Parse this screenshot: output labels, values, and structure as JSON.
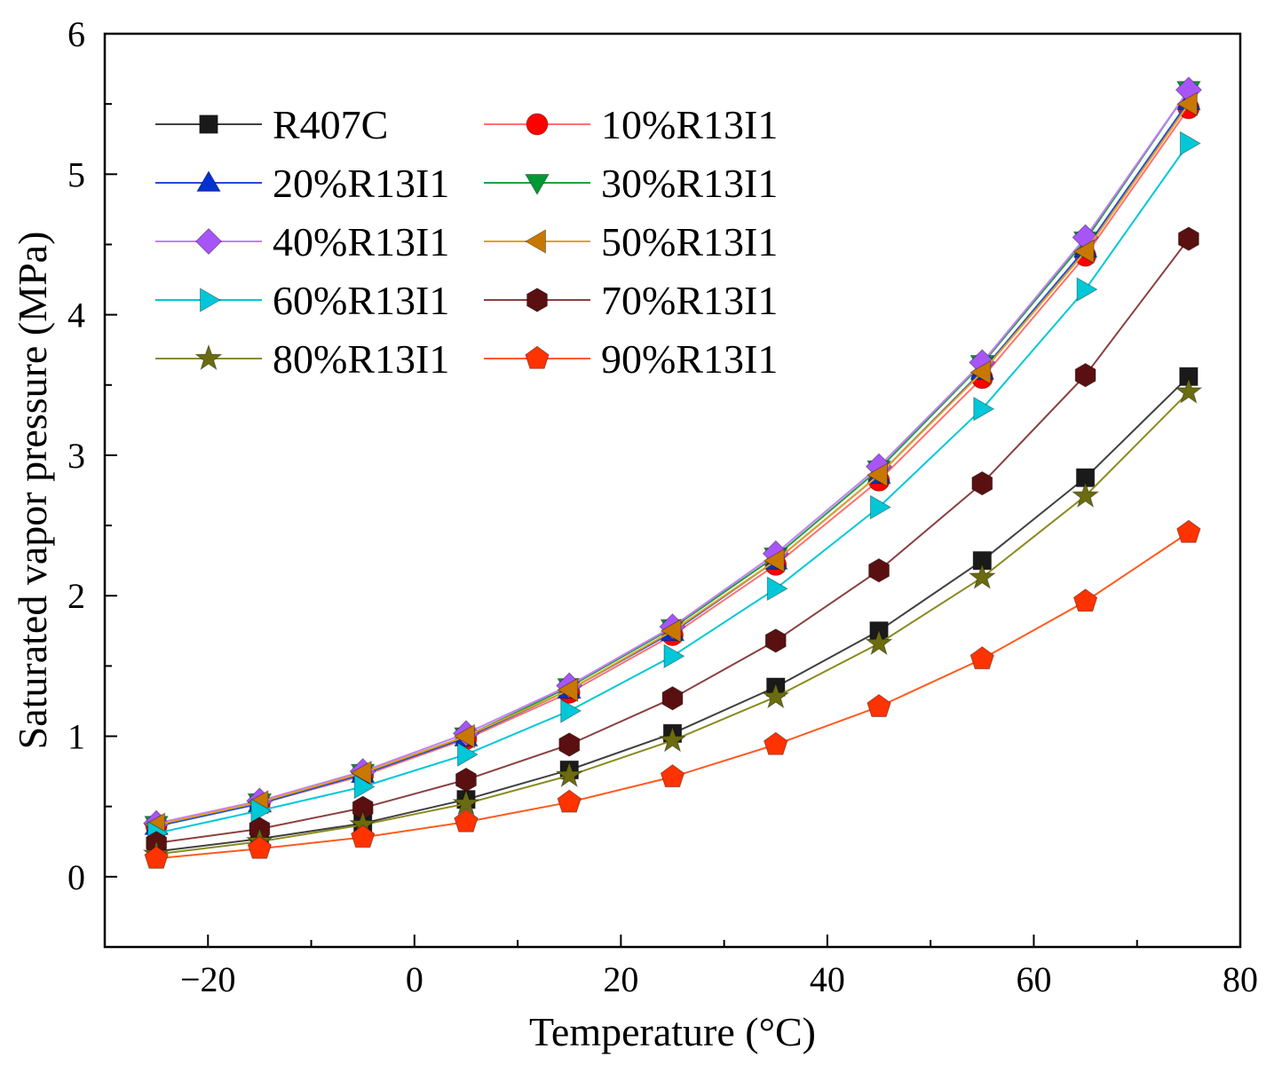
{
  "chart_data": {
    "type": "line",
    "title": "",
    "xlabel": "Temperature (°C)",
    "ylabel": "Saturated vapor pressure (MPa)",
    "xlim": [
      -30,
      80
    ],
    "ylim": [
      -0.5,
      6
    ],
    "x_ticks": [
      -20,
      0,
      20,
      40,
      60,
      80
    ],
    "y_ticks": [
      0,
      1,
      2,
      3,
      4,
      5,
      6
    ],
    "legend_position": "top-left",
    "x": [
      -25,
      -15,
      -5,
      5,
      15,
      25,
      35,
      45,
      55,
      65,
      75
    ],
    "series": [
      {
        "name": "R407C",
        "color": "#404040",
        "marker": "square",
        "markerColor": "#1a1a1a",
        "values": [
          0.18,
          0.27,
          0.38,
          0.55,
          0.76,
          1.02,
          1.35,
          1.75,
          2.25,
          2.84,
          3.56
        ]
      },
      {
        "name": "10%R13I1",
        "color": "#ff7070",
        "marker": "circle",
        "markerColor": "#ff0000",
        "values": [
          0.36,
          0.52,
          0.72,
          0.98,
          1.31,
          1.72,
          2.22,
          2.82,
          3.55,
          4.42,
          5.47
        ]
      },
      {
        "name": "20%R13I1",
        "color": "#1f4fd8",
        "marker": "triangle-up",
        "markerColor": "#0033cc",
        "values": [
          0.36,
          0.52,
          0.73,
          0.99,
          1.33,
          1.74,
          2.25,
          2.86,
          3.6,
          4.47,
          5.52
        ]
      },
      {
        "name": "30%R13I1",
        "color": "#20a040",
        "marker": "triangle-down",
        "markerColor": "#009933",
        "values": [
          0.37,
          0.53,
          0.74,
          1.0,
          1.35,
          1.77,
          2.28,
          2.9,
          3.65,
          4.53,
          5.6
        ]
      },
      {
        "name": "40%R13I1",
        "color": "#c77dff",
        "marker": "diamond",
        "markerColor": "#a855f7",
        "values": [
          0.38,
          0.54,
          0.75,
          1.02,
          1.36,
          1.78,
          2.3,
          2.92,
          3.66,
          4.55,
          5.6
        ]
      },
      {
        "name": "50%R13I1",
        "color": "#e0a020",
        "marker": "triangle-left",
        "markerColor": "#c87800",
        "values": [
          0.37,
          0.53,
          0.74,
          1.0,
          1.33,
          1.75,
          2.25,
          2.86,
          3.59,
          4.45,
          5.5
        ]
      },
      {
        "name": "60%R13I1",
        "color": "#00c8d8",
        "marker": "triangle-right",
        "markerColor": "#00c8d8",
        "values": [
          0.31,
          0.47,
          0.64,
          0.87,
          1.18,
          1.57,
          2.05,
          2.63,
          3.33,
          4.18,
          5.22
        ]
      },
      {
        "name": "70%R13I1",
        "color": "#8b4040",
        "marker": "hexagon",
        "markerColor": "#5a1010",
        "values": [
          0.24,
          0.34,
          0.49,
          0.69,
          0.94,
          1.27,
          1.68,
          2.18,
          2.8,
          3.57,
          4.54
        ]
      },
      {
        "name": "80%R13I1",
        "color": "#8a8a20",
        "marker": "star",
        "markerColor": "#6b6b10",
        "values": [
          0.16,
          0.25,
          0.37,
          0.52,
          0.72,
          0.97,
          1.28,
          1.66,
          2.13,
          2.71,
          3.45
        ]
      },
      {
        "name": "90%R13I1",
        "color": "#ff5a1f",
        "marker": "pentagon",
        "markerColor": "#ff3300",
        "values": [
          0.13,
          0.2,
          0.28,
          0.39,
          0.53,
          0.71,
          0.94,
          1.21,
          1.55,
          1.96,
          2.45
        ]
      }
    ]
  }
}
